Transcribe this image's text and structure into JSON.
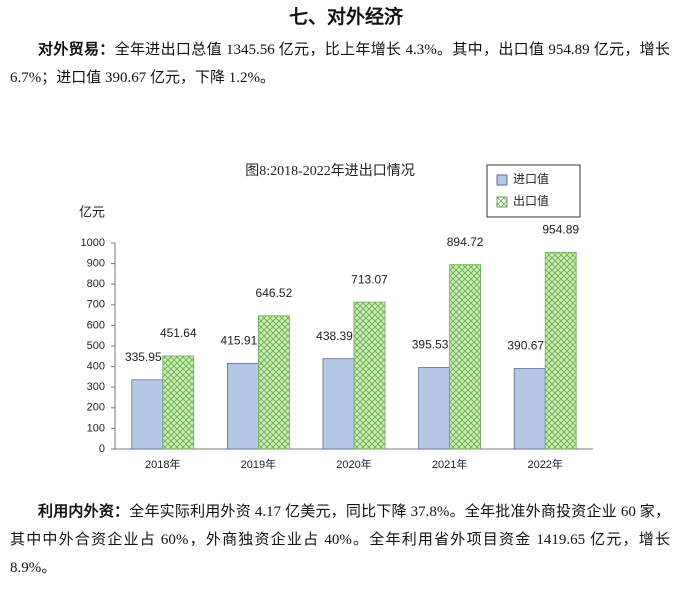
{
  "heading": "七、对外经济",
  "paragraphs": [
    {
      "lead": "对外贸易：",
      "text": "全年进出口总值 1345.56 亿元，比上年增长 4.3%。其中，出口值 954.89 亿元，增长 6.7%；进口值 390.67 亿元，下降 1.2%。"
    },
    {
      "lead": "利用内外资：",
      "text": "全年实际利用外资 4.17 亿美元，同比下降 37.8%。全年批准外商投资企业 60 家，其中中外合资企业占 60%，外商独资企业占 40%。全年利用省外项目资金 1419.65 亿元，增长 8.9%。"
    }
  ],
  "chart_data": {
    "type": "bar",
    "title": "图8:2018-2022年进出口情况",
    "y_label": "亿元",
    "categories": [
      "2018年",
      "2019年",
      "2020年",
      "2021年",
      "2022年"
    ],
    "series": [
      {
        "name": "进口值",
        "color": "#b4c7e7",
        "values": [
          335.95,
          415.91,
          438.39,
          395.53,
          390.67
        ]
      },
      {
        "name": "出口值",
        "color": "#c6efb0",
        "values": [
          451.64,
          646.52,
          713.07,
          894.72,
          954.89
        ]
      }
    ],
    "ylim": [
      0,
      1000
    ],
    "yticks": [
      0,
      100,
      200,
      300,
      400,
      500,
      600,
      700,
      800,
      900,
      1000
    ],
    "legend": "top-right"
  }
}
